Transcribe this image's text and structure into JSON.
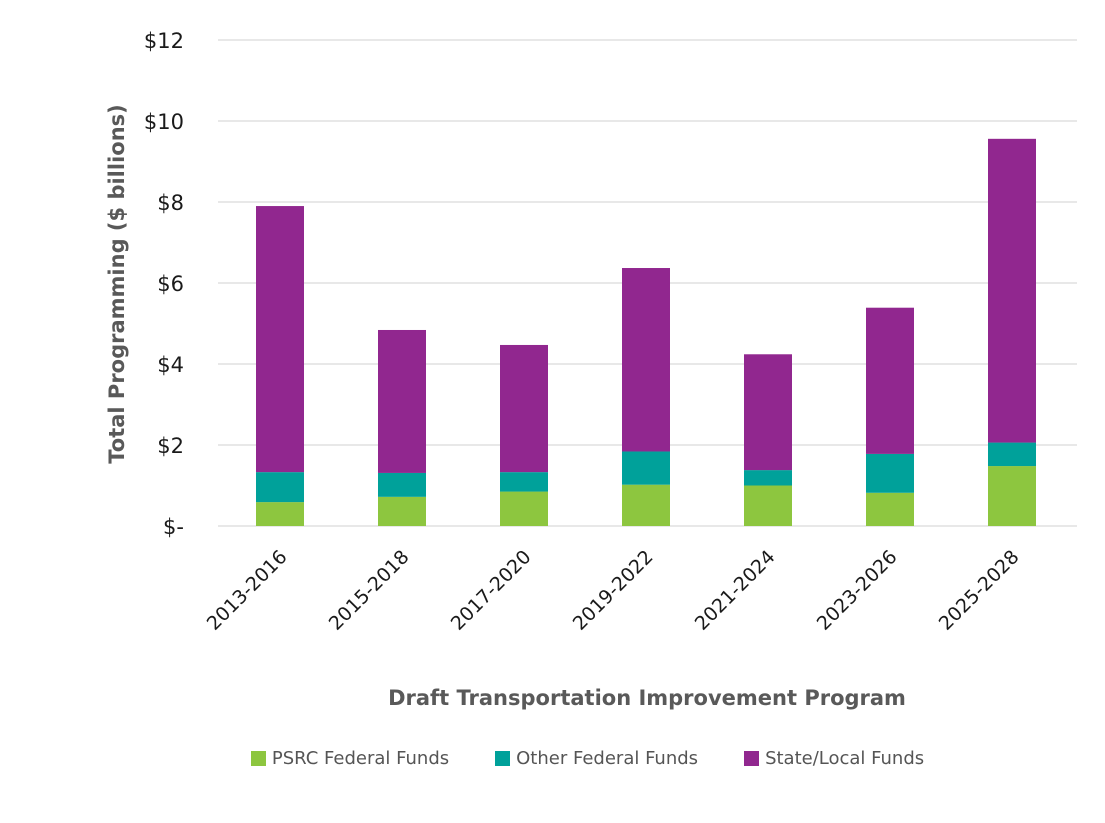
{
  "chart_data": {
    "type": "bar",
    "stacked": true,
    "title": "",
    "xlabel": "Draft Transportation Improvement Program",
    "ylabel": "Total Programming ($ billions)",
    "ylim": [
      0,
      12
    ],
    "yticks": [
      0,
      2,
      4,
      6,
      8,
      10,
      12
    ],
    "ytick_labels": [
      "$-",
      "$2",
      "$4",
      "$6",
      "$8",
      "$10",
      "$12"
    ],
    "grid": true,
    "legend_position": "bottom",
    "categories": [
      "2013-2016",
      "2015-2018",
      "2017-2020",
      "2019-2022",
      "2021-2024",
      "2023-2026",
      "2025-2028"
    ],
    "series": [
      {
        "name": "PSRC Federal Funds",
        "color": "#8DC63F",
        "values": [
          0.59,
          0.72,
          0.85,
          1.02,
          1.0,
          0.82,
          1.48
        ]
      },
      {
        "name": "Other Federal Funds",
        "color": "#00A19A",
        "values": [
          0.74,
          0.59,
          0.48,
          0.82,
          0.38,
          0.96,
          0.58
        ]
      },
      {
        "name": "State/Local Funds",
        "color": "#91278F",
        "values": [
          6.57,
          3.53,
          3.14,
          4.53,
          2.86,
          3.61,
          7.5
        ]
      }
    ]
  }
}
